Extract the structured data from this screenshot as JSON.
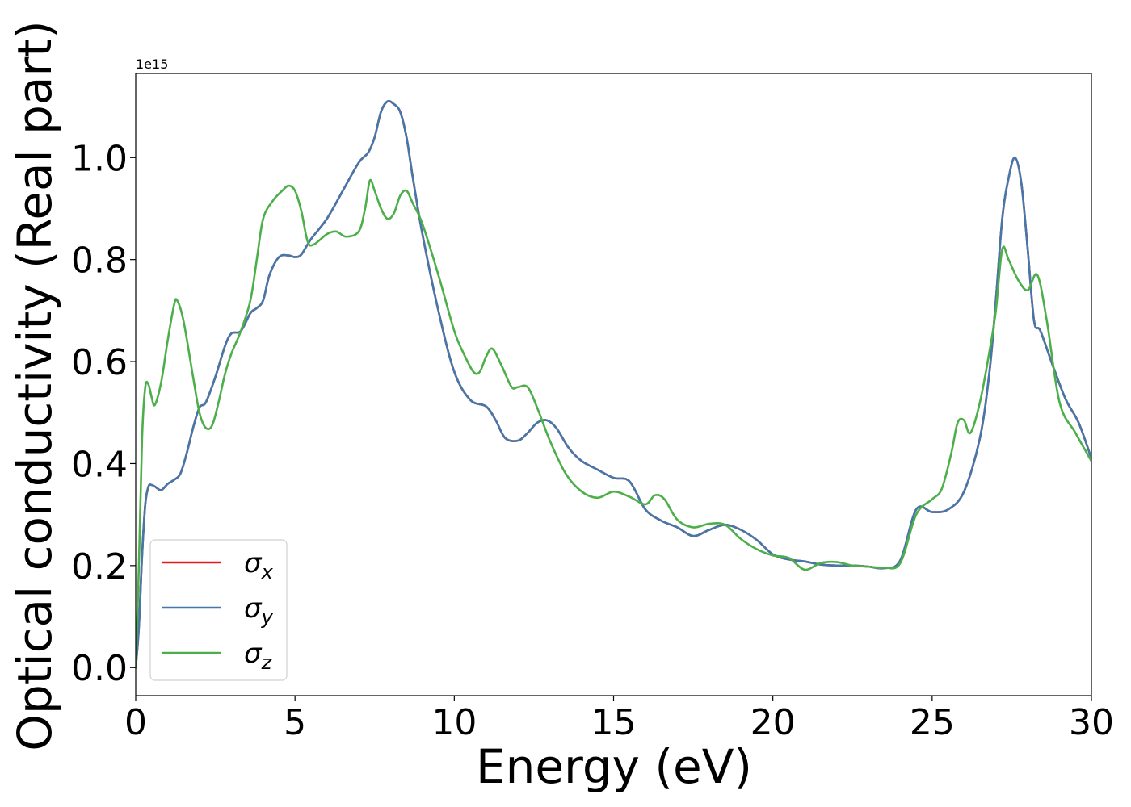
{
  "chart_data": {
    "type": "line",
    "xlabel": "Energy (eV)",
    "ylabel": "Optical conductivity (Real part)",
    "y_offset_label": "1e15",
    "xlim": [
      0,
      30
    ],
    "ylim": [
      -0.055,
      1.165
    ],
    "xticks": [
      0,
      5,
      10,
      15,
      20,
      25,
      30
    ],
    "yticks": [
      0.0,
      0.2,
      0.4,
      0.6,
      0.8,
      1.0
    ],
    "xtick_labels": [
      "0",
      "5",
      "10",
      "15",
      "20",
      "25",
      "30"
    ],
    "ytick_labels": [
      "0.0",
      "0.2",
      "0.4",
      "0.6",
      "0.8",
      "1.0"
    ],
    "grid": false,
    "legend_position": "lower-left",
    "series": [
      {
        "name": "σx",
        "name_base": "σ",
        "name_sub": "x",
        "color": "#e41a1c",
        "x": [
          0,
          0.1,
          0.2,
          0.3,
          0.4,
          0.5,
          0.6,
          0.8,
          1.0,
          1.2,
          1.4,
          1.6,
          1.8,
          2.0,
          2.2,
          2.5,
          2.8,
          3.0,
          3.3,
          3.6,
          3.8,
          4.0,
          4.2,
          4.5,
          4.8,
          5.0,
          5.2,
          5.5,
          6.0,
          6.5,
          7.0,
          7.3,
          7.5,
          7.7,
          7.9,
          8.1,
          8.3,
          8.5,
          8.7,
          9.0,
          9.5,
          10.0,
          10.5,
          11.0,
          11.3,
          11.6,
          12.0,
          12.3,
          12.6,
          12.9,
          13.2,
          13.6,
          14.0,
          14.5,
          15.0,
          15.5,
          16.0,
          16.5,
          17.0,
          17.5,
          18.0,
          18.5,
          19.0,
          19.5,
          20.0,
          20.5,
          21.0,
          21.5,
          22.0,
          22.5,
          23.0,
          23.5,
          24.0,
          24.5,
          25.0,
          25.5,
          26.0,
          26.5,
          26.8,
          27.0,
          27.2,
          27.4,
          27.6,
          27.8,
          28.0,
          28.2,
          28.4,
          28.8,
          29.2,
          29.6,
          30.0
        ],
        "y": [
          0.0,
          0.08,
          0.22,
          0.32,
          0.355,
          0.358,
          0.355,
          0.348,
          0.36,
          0.368,
          0.38,
          0.42,
          0.47,
          0.51,
          0.52,
          0.57,
          0.63,
          0.655,
          0.66,
          0.695,
          0.705,
          0.72,
          0.77,
          0.805,
          0.808,
          0.805,
          0.81,
          0.84,
          0.88,
          0.935,
          0.99,
          1.01,
          1.04,
          1.09,
          1.11,
          1.105,
          1.09,
          1.04,
          0.96,
          0.85,
          0.7,
          0.58,
          0.525,
          0.512,
          0.485,
          0.45,
          0.445,
          0.46,
          0.48,
          0.485,
          0.47,
          0.43,
          0.405,
          0.388,
          0.372,
          0.365,
          0.31,
          0.288,
          0.275,
          0.258,
          0.27,
          0.28,
          0.27,
          0.25,
          0.222,
          0.212,
          0.208,
          0.202,
          0.2,
          0.2,
          0.198,
          0.195,
          0.21,
          0.31,
          0.305,
          0.31,
          0.345,
          0.45,
          0.58,
          0.72,
          0.88,
          0.96,
          1.0,
          0.95,
          0.82,
          0.68,
          0.66,
          0.59,
          0.525,
          0.48,
          0.41
        ]
      },
      {
        "name": "σy",
        "name_base": "σ",
        "name_sub": "y",
        "color": "#4477aa",
        "x": [
          0,
          0.1,
          0.2,
          0.3,
          0.4,
          0.5,
          0.6,
          0.8,
          1.0,
          1.2,
          1.4,
          1.6,
          1.8,
          2.0,
          2.2,
          2.5,
          2.8,
          3.0,
          3.3,
          3.6,
          3.8,
          4.0,
          4.2,
          4.5,
          4.8,
          5.0,
          5.2,
          5.5,
          6.0,
          6.5,
          7.0,
          7.3,
          7.5,
          7.7,
          7.9,
          8.1,
          8.3,
          8.5,
          8.7,
          9.0,
          9.5,
          10.0,
          10.5,
          11.0,
          11.3,
          11.6,
          12.0,
          12.3,
          12.6,
          12.9,
          13.2,
          13.6,
          14.0,
          14.5,
          15.0,
          15.5,
          16.0,
          16.5,
          17.0,
          17.5,
          18.0,
          18.5,
          19.0,
          19.5,
          20.0,
          20.5,
          21.0,
          21.5,
          22.0,
          22.5,
          23.0,
          23.5,
          24.0,
          24.5,
          25.0,
          25.5,
          26.0,
          26.5,
          26.8,
          27.0,
          27.2,
          27.4,
          27.6,
          27.8,
          28.0,
          28.2,
          28.4,
          28.8,
          29.2,
          29.6,
          30.0
        ],
        "y": [
          0.0,
          0.08,
          0.22,
          0.32,
          0.355,
          0.358,
          0.355,
          0.348,
          0.36,
          0.368,
          0.38,
          0.42,
          0.47,
          0.51,
          0.52,
          0.57,
          0.63,
          0.655,
          0.66,
          0.695,
          0.705,
          0.72,
          0.77,
          0.805,
          0.808,
          0.805,
          0.81,
          0.84,
          0.88,
          0.935,
          0.99,
          1.01,
          1.04,
          1.09,
          1.11,
          1.105,
          1.09,
          1.04,
          0.96,
          0.85,
          0.7,
          0.58,
          0.525,
          0.512,
          0.485,
          0.45,
          0.445,
          0.46,
          0.48,
          0.485,
          0.47,
          0.43,
          0.405,
          0.388,
          0.372,
          0.365,
          0.31,
          0.288,
          0.275,
          0.258,
          0.27,
          0.28,
          0.27,
          0.25,
          0.222,
          0.212,
          0.208,
          0.202,
          0.2,
          0.2,
          0.198,
          0.195,
          0.21,
          0.31,
          0.305,
          0.31,
          0.345,
          0.45,
          0.58,
          0.72,
          0.88,
          0.96,
          1.0,
          0.95,
          0.82,
          0.68,
          0.66,
          0.59,
          0.525,
          0.48,
          0.41
        ]
      },
      {
        "name": "σz",
        "name_base": "σ",
        "name_sub": "z",
        "color": "#4daf4a",
        "x": [
          0,
          0.1,
          0.2,
          0.3,
          0.4,
          0.5,
          0.6,
          0.8,
          1.0,
          1.2,
          1.3,
          1.5,
          1.8,
          2.0,
          2.2,
          2.4,
          2.6,
          2.8,
          3.0,
          3.3,
          3.6,
          3.8,
          4.0,
          4.3,
          4.6,
          4.8,
          5.0,
          5.2,
          5.4,
          5.6,
          6.0,
          6.3,
          6.6,
          7.0,
          7.2,
          7.35,
          7.5,
          7.7,
          7.9,
          8.1,
          8.3,
          8.5,
          8.7,
          9.0,
          9.5,
          10.0,
          10.3,
          10.6,
          10.8,
          11.0,
          11.2,
          11.5,
          11.8,
          12.0,
          12.3,
          12.6,
          13.0,
          13.5,
          14.0,
          14.5,
          15.0,
          15.5,
          16.0,
          16.3,
          16.6,
          17.0,
          17.5,
          18.0,
          18.5,
          19.0,
          19.5,
          20.0,
          20.5,
          21.0,
          21.5,
          22.0,
          22.5,
          23.0,
          23.5,
          24.0,
          24.5,
          25.0,
          25.3,
          25.6,
          25.8,
          26.0,
          26.2,
          26.5,
          26.8,
          27.0,
          27.2,
          27.4,
          27.7,
          28.0,
          28.3,
          28.6,
          29.0,
          29.5,
          30.0
        ],
        "y": [
          0.0,
          0.2,
          0.45,
          0.55,
          0.555,
          0.53,
          0.515,
          0.56,
          0.64,
          0.71,
          0.72,
          0.68,
          0.57,
          0.5,
          0.47,
          0.475,
          0.52,
          0.575,
          0.615,
          0.66,
          0.72,
          0.8,
          0.88,
          0.915,
          0.935,
          0.945,
          0.935,
          0.895,
          0.835,
          0.83,
          0.85,
          0.855,
          0.845,
          0.855,
          0.9,
          0.955,
          0.935,
          0.9,
          0.88,
          0.89,
          0.925,
          0.935,
          0.91,
          0.87,
          0.77,
          0.66,
          0.615,
          0.58,
          0.58,
          0.61,
          0.625,
          0.59,
          0.55,
          0.55,
          0.55,
          0.51,
          0.445,
          0.38,
          0.345,
          0.333,
          0.345,
          0.335,
          0.32,
          0.338,
          0.33,
          0.29,
          0.275,
          0.282,
          0.28,
          0.252,
          0.232,
          0.22,
          0.215,
          0.192,
          0.205,
          0.207,
          0.2,
          0.198,
          0.196,
          0.205,
          0.3,
          0.33,
          0.35,
          0.42,
          0.48,
          0.485,
          0.46,
          0.52,
          0.62,
          0.7,
          0.82,
          0.8,
          0.76,
          0.74,
          0.77,
          0.68,
          0.52,
          0.46,
          0.405
        ]
      }
    ]
  }
}
